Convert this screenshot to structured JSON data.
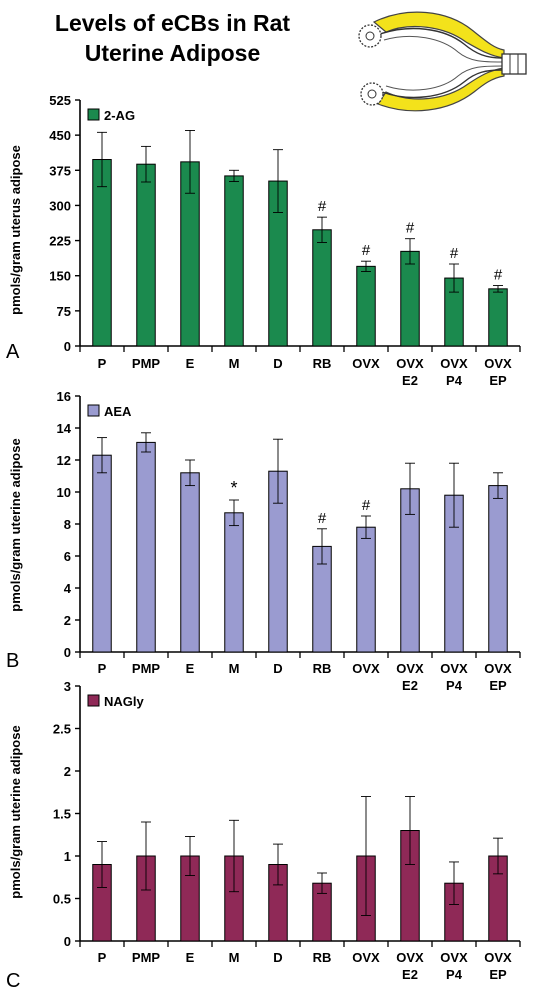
{
  "figure_title": [
    "Levels of eCBs in Rat",
    "Uterine Adipose"
  ],
  "chart_data": [
    {
      "type": "bar",
      "panel_label": "A",
      "ylabel": "pmols/gram uterus adipose",
      "ylim": [
        0,
        525
      ],
      "yticks": [
        "0",
        "75",
        "150",
        "225",
        "300",
        "375",
        "450",
        "525"
      ],
      "categories": [
        [
          "P"
        ],
        [
          "PMP"
        ],
        [
          "E"
        ],
        [
          "M"
        ],
        [
          "D"
        ],
        [
          "RB"
        ],
        [
          "OVX"
        ],
        [
          "OVX",
          "E2"
        ],
        [
          "OVX",
          "P4"
        ],
        [
          "OVX",
          "EP"
        ]
      ],
      "series": [
        {
          "name": "2-AG",
          "color": "#1b8a4e",
          "values": [
            398,
            388,
            393,
            363,
            352,
            248,
            170,
            202,
            145,
            122
          ],
          "errors": [
            58,
            38,
            67,
            12,
            67,
            27,
            11,
            27,
            30,
            7
          ]
        }
      ],
      "annotations": [
        "",
        "",
        "",
        "",
        "",
        "#",
        "#",
        "#",
        "#",
        "#"
      ],
      "grid": false,
      "legend_position": "top-left"
    },
    {
      "type": "bar",
      "panel_label": "B",
      "ylabel": "pmols/gram uterine adipose",
      "ylim": [
        0,
        16
      ],
      "yticks": [
        "0",
        "2",
        "4",
        "6",
        "8",
        "10",
        "12",
        "14",
        "16"
      ],
      "categories": [
        [
          "P"
        ],
        [
          "PMP"
        ],
        [
          "E"
        ],
        [
          "M"
        ],
        [
          "D"
        ],
        [
          "RB"
        ],
        [
          "OVX"
        ],
        [
          "OVX",
          "E2"
        ],
        [
          "OVX",
          "P4"
        ],
        [
          "OVX",
          "EP"
        ]
      ],
      "series": [
        {
          "name": "AEA",
          "color": "#9a9bd0",
          "values": [
            12.3,
            13.1,
            11.2,
            8.7,
            11.3,
            6.6,
            7.8,
            10.2,
            9.8,
            10.4
          ],
          "errors": [
            1.1,
            0.6,
            0.8,
            0.8,
            2.0,
            1.1,
            0.7,
            1.6,
            2.0,
            0.8
          ]
        }
      ],
      "annotations": [
        "",
        "",
        "",
        "*",
        "",
        "#",
        "#",
        "",
        "",
        ""
      ],
      "grid": false,
      "legend_position": "top-left"
    },
    {
      "type": "bar",
      "panel_label": "C",
      "ylabel": "pmols/gram uterine adipose",
      "ylim": [
        0,
        3
      ],
      "yticks": [
        "0",
        "0.5",
        "1",
        "1.5",
        "2",
        "2.5",
        "3"
      ],
      "categories": [
        [
          "P"
        ],
        [
          "PMP"
        ],
        [
          "E"
        ],
        [
          "M"
        ],
        [
          "D"
        ],
        [
          "RB"
        ],
        [
          "OVX"
        ],
        [
          "OVX",
          "E2"
        ],
        [
          "OVX",
          "P4"
        ],
        [
          "OVX",
          "EP"
        ]
      ],
      "series": [
        {
          "name": "NAGly",
          "color": "#8f2957",
          "values": [
            0.9,
            1.0,
            1.0,
            1.0,
            0.9,
            0.68,
            1.0,
            1.3,
            0.68,
            1.0
          ],
          "errors": [
            0.27,
            0.4,
            0.23,
            0.42,
            0.24,
            0.12,
            0.7,
            0.4,
            0.25,
            0.21
          ]
        }
      ],
      "annotations": [
        "",
        "",
        "",
        "",
        "",
        "",
        "",
        "",
        "",
        ""
      ],
      "grid": false,
      "legend_position": "top-left"
    }
  ]
}
